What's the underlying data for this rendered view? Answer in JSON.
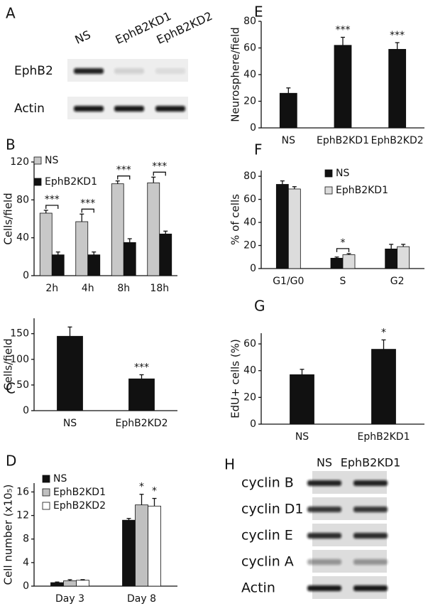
{
  "chart_data": [
    {
      "type": "bar",
      "panel": "B",
      "ylabel": "Cells/field",
      "categories": [
        "2h",
        "4h",
        "8h",
        "18h"
      ],
      "series": [
        {
          "name": "NS",
          "color": "#c8c8c8",
          "values": [
            66,
            57,
            97,
            98
          ],
          "errors": [
            3,
            8,
            3,
            6
          ],
          "annotations": [
            null,
            null,
            null,
            null
          ]
        },
        {
          "name": "EphB2KD1",
          "color": "#111111",
          "values": [
            22,
            22,
            35,
            44
          ],
          "errors": [
            3,
            3,
            4,
            3
          ],
          "annotations": [
            "***",
            "***",
            "***",
            "***"
          ]
        }
      ],
      "ylim": [
        0,
        120
      ],
      "yticks": [
        0,
        40,
        80,
        120
      ]
    },
    {
      "type": "bar",
      "panel": "C",
      "ylabel": "Cells/field",
      "categories": [
        "NS",
        "EphB2KD2"
      ],
      "color": "#111111",
      "values": [
        145,
        62
      ],
      "errors": [
        18,
        8
      ],
      "annotations": [
        null,
        "***"
      ],
      "ylim": [
        0,
        180
      ],
      "yticks": [
        0,
        50,
        100,
        150
      ]
    },
    {
      "type": "bar",
      "panel": "D",
      "ylabel": "Cell number (x10₅)",
      "categories": [
        "Day 3",
        "Day 8"
      ],
      "series": [
        {
          "name": "NS",
          "color": "#111111",
          "values": [
            0.6,
            11.2
          ],
          "errors": [
            0.1,
            0.3
          ],
          "annotations": [
            null,
            null
          ]
        },
        {
          "name": "EphB2KD1",
          "color": "#c0c0c0",
          "values": [
            0.9,
            13.8
          ],
          "errors": [
            0.2,
            1.8
          ],
          "annotations": [
            null,
            "*"
          ]
        },
        {
          "name": "EphB2KD2",
          "color": "#ffffff",
          "values": [
            1.0,
            13.6
          ],
          "errors": [
            0.1,
            1.3
          ],
          "annotations": [
            null,
            "*"
          ]
        }
      ],
      "ylim": [
        0,
        17.5
      ],
      "yticks": [
        0,
        4,
        8,
        12,
        16
      ]
    },
    {
      "type": "bar",
      "panel": "E",
      "ylabel": "Neurosphere/field",
      "categories": [
        "NS",
        "EphB2KD1",
        "EphB2KD2"
      ],
      "color": "#111111",
      "values": [
        26,
        62,
        59
      ],
      "errors": [
        4,
        6,
        5
      ],
      "annotations": [
        null,
        "***",
        "***"
      ],
      "ylim": [
        0,
        80
      ],
      "yticks": [
        0,
        20,
        40,
        60,
        80
      ]
    },
    {
      "type": "bar",
      "panel": "F",
      "ylabel": "% of cells",
      "categories": [
        "G1/G0",
        "S",
        "G2"
      ],
      "series": [
        {
          "name": "NS",
          "color": "#111111",
          "values": [
            73,
            9,
            17
          ],
          "errors": [
            3,
            1,
            4
          ],
          "annotations": [
            null,
            null,
            null
          ]
        },
        {
          "name": "EphB2KD1",
          "color": "#dcdcdc",
          "values": [
            69,
            12,
            19
          ],
          "errors": [
            2,
            1,
            2
          ],
          "annotations": [
            null,
            "*",
            null
          ]
        }
      ],
      "ylim": [
        0,
        85
      ],
      "yticks": [
        0,
        20,
        40,
        60,
        80
      ]
    },
    {
      "type": "bar",
      "panel": "G",
      "ylabel": "EdU+ cells (%)",
      "categories": [
        "NS",
        "EphB2KD1"
      ],
      "color": "#111111",
      "values": [
        37,
        56
      ],
      "errors": [
        4,
        7
      ],
      "annotations": [
        null,
        "*"
      ],
      "ylim": [
        0,
        68
      ],
      "yticks": [
        0,
        20,
        40,
        60
      ]
    }
  ],
  "blots": [
    {
      "panel": "A",
      "lanes": [
        "NS",
        "EphB2KD1",
        "EphB2KD2"
      ],
      "rows": [
        "EphB2",
        "Actin"
      ]
    },
    {
      "panel": "H",
      "lanes": [
        "NS",
        "EphB2KD1"
      ],
      "rows": [
        "cyclin B",
        "cyclin D1",
        "cyclin E",
        "cyclin A",
        "Actin"
      ]
    }
  ]
}
